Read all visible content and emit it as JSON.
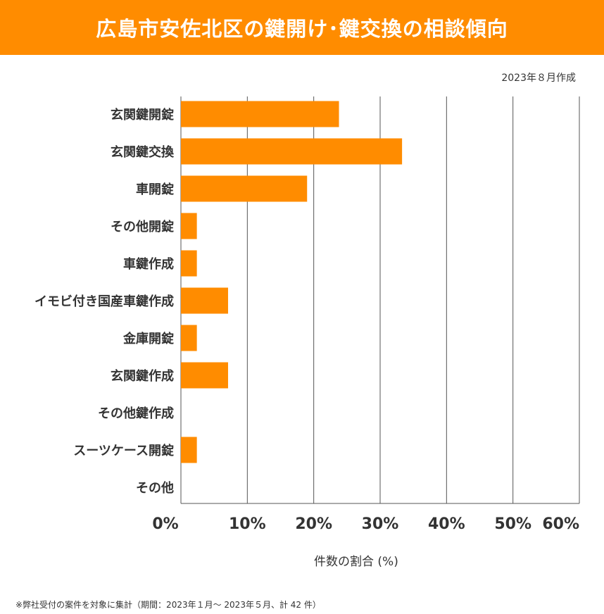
{
  "header": {
    "title": "広島市安佐北区の鍵開け･鍵交換の相談傾向"
  },
  "date_note": "2023年８月作成",
  "footnote": "※弊社受付の案件を対象に集計（期間：2023年１月～ 2023年５月、計 42 件）",
  "colors": {
    "accent": "#ff8c00",
    "bar": "#ff8c00",
    "grid": "#555555"
  },
  "chart_data": {
    "type": "bar",
    "orientation": "horizontal",
    "categories": [
      "玄関鍵開錠",
      "玄関鍵交換",
      "車開錠",
      "その他開錠",
      "車鍵作成",
      "イモビ付き国産車鍵作成",
      "金庫開錠",
      "玄関鍵作成",
      "その他鍵作成",
      "スーツケース開錠",
      "その他"
    ],
    "values": [
      23.8,
      33.3,
      19.0,
      2.4,
      2.4,
      7.1,
      2.4,
      7.1,
      0,
      2.4,
      0
    ],
    "xlabel": "件数の割合 (%)",
    "xlim": [
      0,
      60
    ],
    "xticks": [
      0,
      10,
      20,
      30,
      40,
      50,
      60
    ],
    "tick_labels": [
      "0%",
      "10%",
      "20%",
      "30%",
      "40%",
      "50%",
      "60%"
    ],
    "grid": true
  }
}
